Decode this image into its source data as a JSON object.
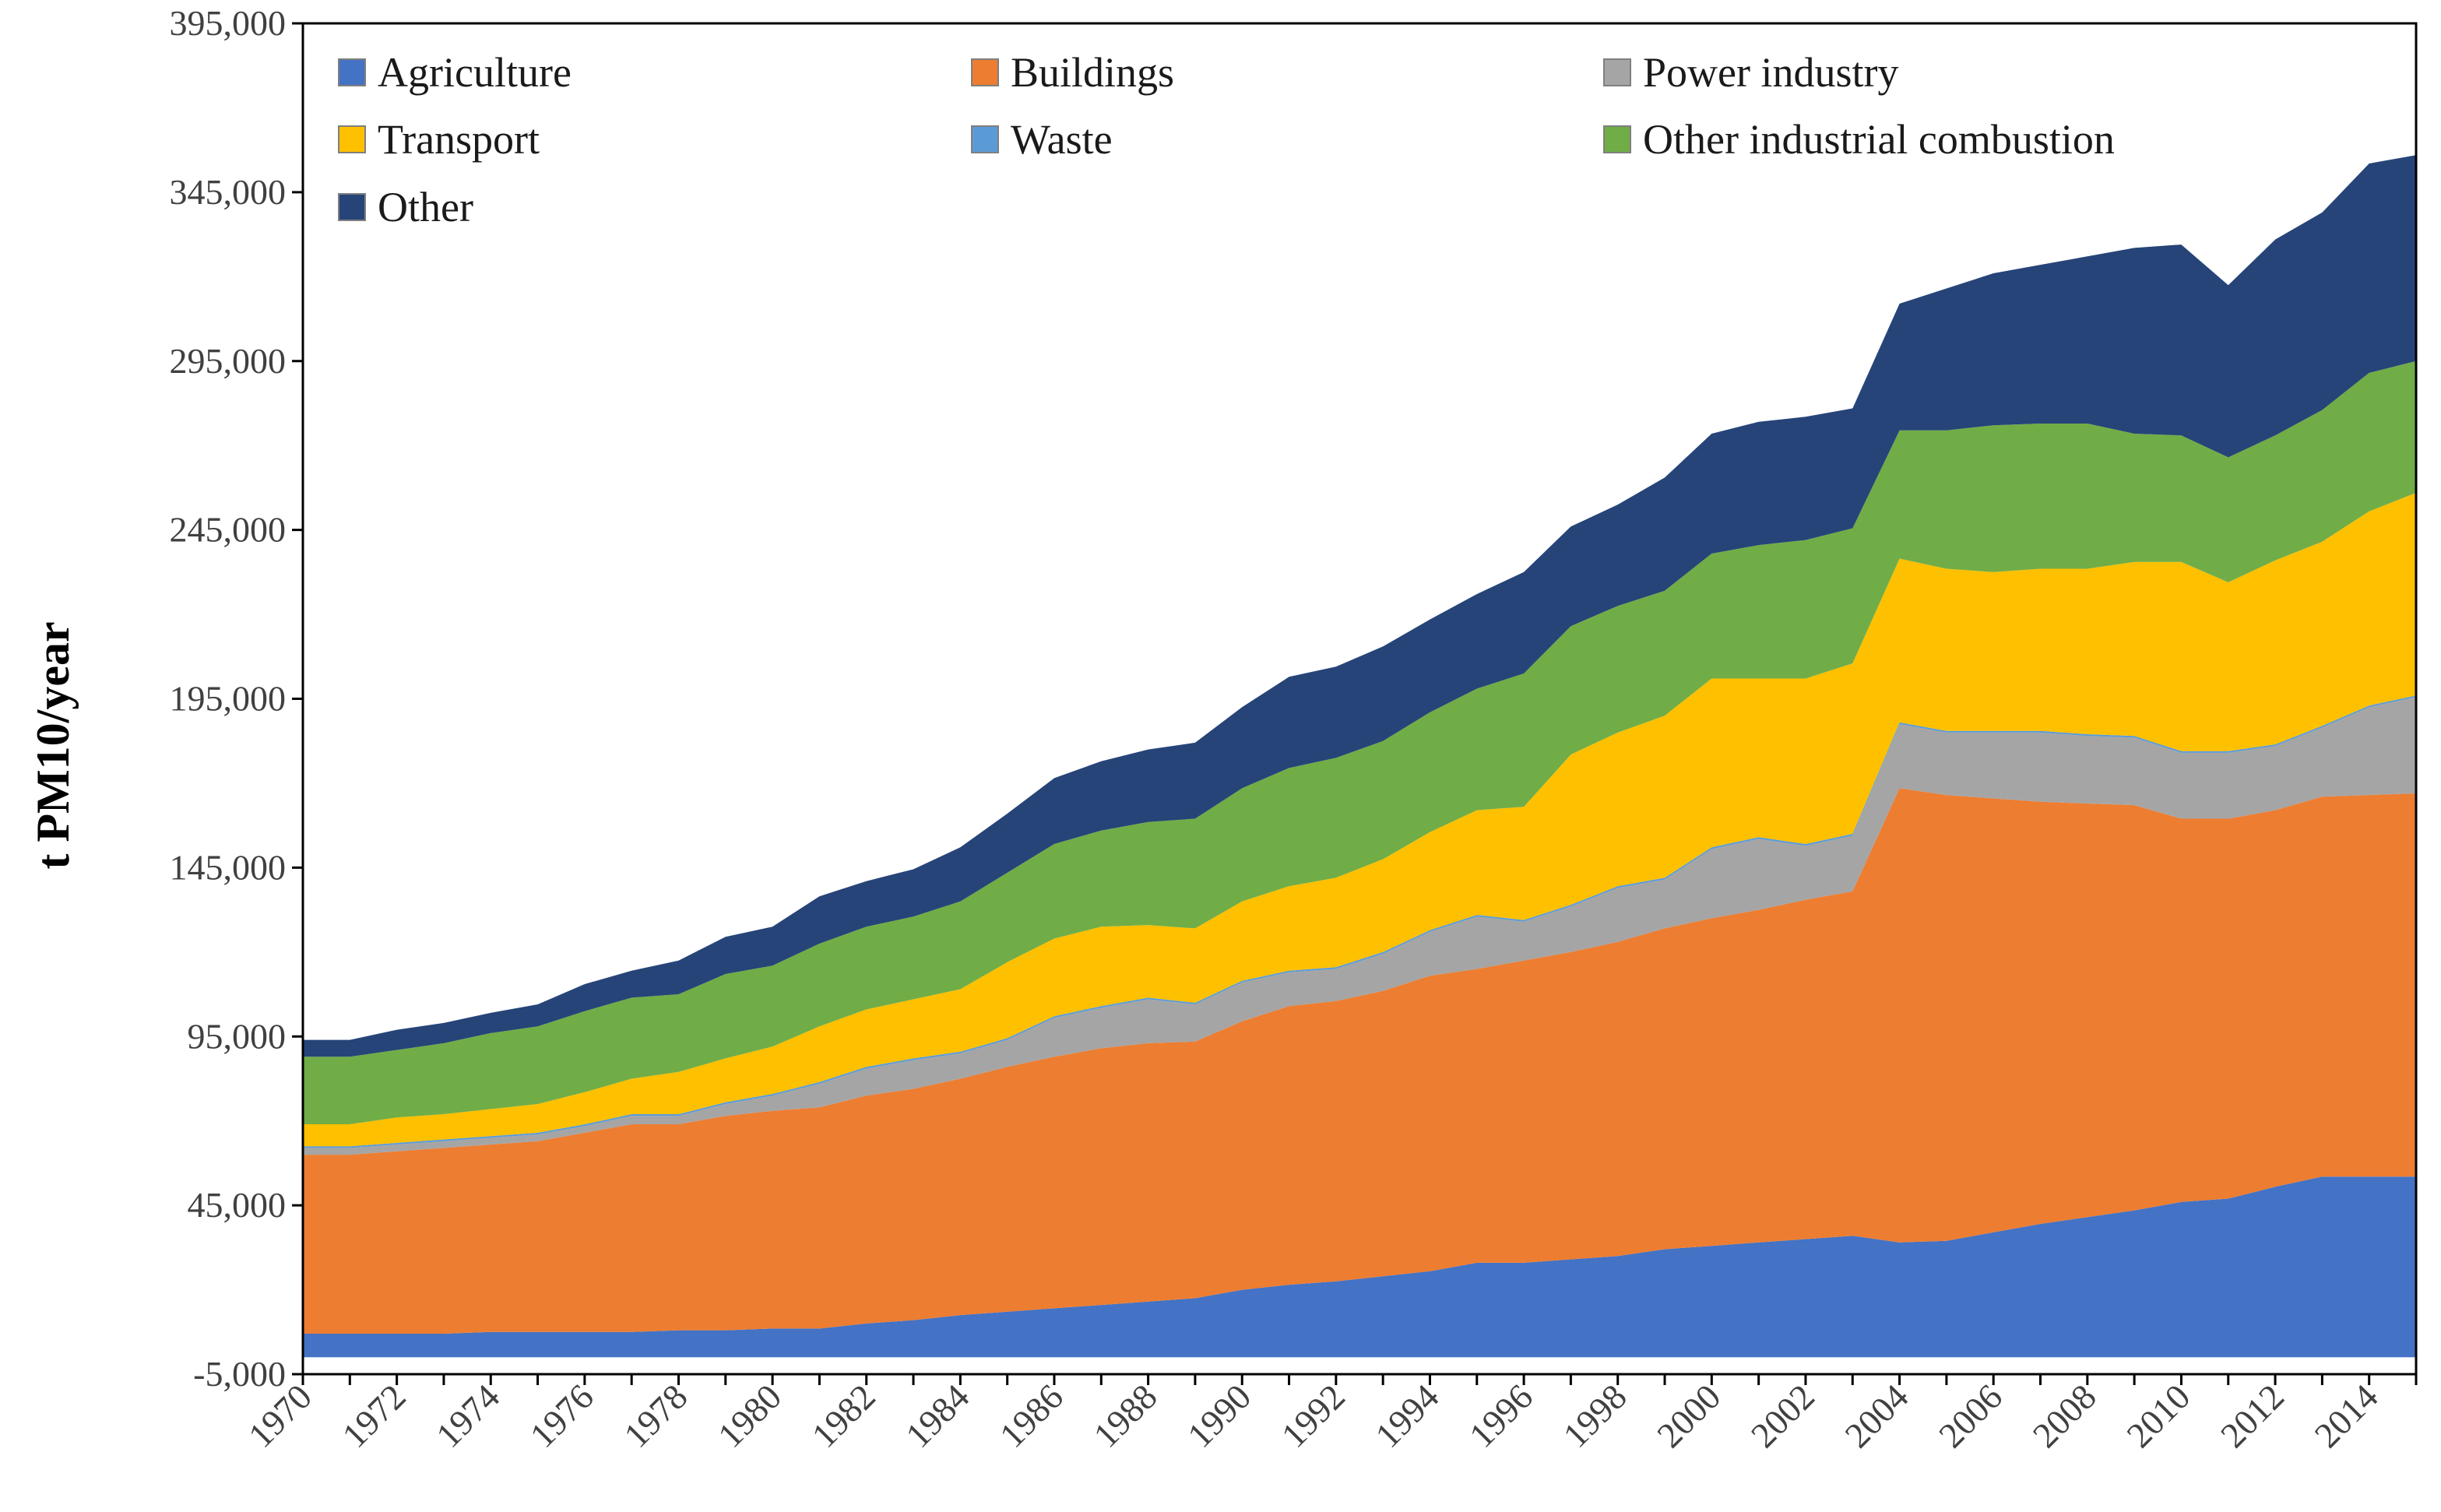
{
  "chart_data": {
    "type": "area",
    "stacked": true,
    "title": "",
    "xlabel": "",
    "ylabel": "t PM10/year",
    "ylim": [
      -5000,
      395000
    ],
    "yticks": [
      -5000,
      45000,
      95000,
      145000,
      195000,
      245000,
      295000,
      345000,
      395000
    ],
    "ytick_labels": [
      "-5,000",
      "45,000",
      "95,000",
      "145,000",
      "195,000",
      "245,000",
      "295,000",
      "345,000",
      "395,000"
    ],
    "xtick_labels": [
      "1970",
      "1972",
      "1974",
      "1976",
      "1978",
      "1980",
      "1982",
      "1984",
      "1986",
      "1988",
      "1990",
      "1992",
      "1994",
      "1996",
      "1998",
      "2000",
      "2002",
      "2004",
      "2006",
      "2008",
      "2010",
      "2012",
      "2014"
    ],
    "x": [
      1970,
      1971,
      1972,
      1973,
      1974,
      1975,
      1976,
      1977,
      1978,
      1979,
      1980,
      1981,
      1982,
      1983,
      1984,
      1985,
      1986,
      1987,
      1988,
      1989,
      1990,
      1991,
      1992,
      1993,
      1994,
      1995,
      1996,
      1997,
      1998,
      1999,
      2000,
      2001,
      2002,
      2003,
      2004,
      2005,
      2006,
      2007,
      2008,
      2009,
      2010,
      2011,
      2012,
      2013,
      2014,
      2015
    ],
    "legend_position": "top",
    "grid": false,
    "series": [
      {
        "name": "Agriculture",
        "color": "#4472C4",
        "values": [
          7000,
          7000,
          7000,
          7000,
          7500,
          7500,
          7500,
          7500,
          8000,
          8000,
          8500,
          8500,
          10000,
          11000,
          12500,
          13500,
          14500,
          15500,
          16500,
          17500,
          20000,
          21500,
          22500,
          24000,
          25500,
          28000,
          28000,
          29000,
          30000,
          32000,
          33000,
          34000,
          35000,
          36000,
          34000,
          34500,
          37000,
          39500,
          41500,
          43500,
          46000,
          47000,
          50500,
          53500,
          53500,
          53500
        ]
      },
      {
        "name": "Buildings",
        "color": "#ED7D31",
        "values": [
          53000,
          53000,
          54000,
          55000,
          55500,
          56500,
          59000,
          61500,
          61000,
          63500,
          64500,
          65500,
          67500,
          68500,
          70000,
          72500,
          74500,
          76000,
          76500,
          76000,
          79500,
          82500,
          83000,
          84500,
          87500,
          87000,
          89500,
          91000,
          93000,
          95000,
          97000,
          98500,
          100500,
          102000,
          134500,
          132000,
          128500,
          125000,
          122500,
          120000,
          113500,
          112500,
          111500,
          112500,
          113000,
          113500
        ]
      },
      {
        "name": "Power industry",
        "color": "#A5A5A5",
        "values": [
          2000,
          2000,
          2000,
          2000,
          2000,
          2000,
          2000,
          2500,
          2500,
          3500,
          4500,
          7000,
          8000,
          8500,
          7500,
          8000,
          11500,
          12000,
          13000,
          11000,
          11500,
          10000,
          9500,
          11000,
          13000,
          15500,
          11500,
          13500,
          16000,
          14500,
          20500,
          21000,
          16000,
          16500,
          19000,
          18500,
          19500,
          20500,
          20000,
          20000,
          19500,
          19500,
          19000,
          20500,
          26000,
          28500
        ]
      },
      {
        "name": "Waste",
        "color": "#5B9BD5",
        "values": [
          500,
          500,
          500,
          500,
          500,
          500,
          500,
          500,
          500,
          500,
          500,
          500,
          500,
          500,
          500,
          500,
          500,
          500,
          500,
          500,
          500,
          500,
          500,
          500,
          500,
          500,
          500,
          500,
          500,
          500,
          500,
          500,
          500,
          500,
          500,
          500,
          500,
          500,
          500,
          500,
          500,
          500,
          500,
          500,
          500,
          500
        ]
      },
      {
        "name": "Transport",
        "color": "#FFC000",
        "values": [
          6500,
          6500,
          7500,
          7500,
          8000,
          8500,
          9500,
          10500,
          12500,
          13000,
          14000,
          16500,
          17000,
          17500,
          18500,
          22500,
          23000,
          23500,
          21500,
          22000,
          23500,
          25000,
          26500,
          27500,
          29000,
          31000,
          33500,
          44500,
          45500,
          48000,
          50000,
          47000,
          49000,
          50500,
          48500,
          48000,
          47000,
          48000,
          49000,
          51500,
          56000,
          50000,
          54500,
          54500,
          57500,
          60000
        ]
      },
      {
        "name": "Other industrial combustion",
        "color": "#70AD47",
        "values": [
          20000,
          20000,
          20000,
          21000,
          22500,
          23000,
          24000,
          24000,
          23000,
          25000,
          24000,
          24500,
          24500,
          24500,
          26000,
          26500,
          28000,
          28500,
          30500,
          32500,
          33500,
          35000,
          35500,
          35000,
          35500,
          36000,
          39500,
          38000,
          37500,
          37000,
          37000,
          39500,
          41000,
          40000,
          38000,
          41000,
          43500,
          43000,
          43000,
          38000,
          37500,
          37000,
          37000,
          39000,
          41000,
          39000
        ]
      },
      {
        "name": "Other",
        "color": "#264478",
        "values": [
          5000,
          5000,
          6000,
          6000,
          6000,
          6500,
          8000,
          8000,
          10000,
          11000,
          11500,
          14000,
          13500,
          14000,
          16000,
          17500,
          19500,
          20500,
          21500,
          22500,
          24000,
          27000,
          27000,
          28000,
          27500,
          28000,
          30000,
          29500,
          30000,
          33500,
          35500,
          36500,
          36500,
          35500,
          37500,
          42000,
          45000,
          47000,
          49500,
          55000,
          56500,
          51000,
          58000,
          58500,
          62000,
          61000
        ]
      }
    ],
    "legend_order": [
      "Agriculture",
      "Buildings",
      "Power industry",
      "Transport",
      "Waste",
      "Other industrial combustion",
      "Other"
    ]
  }
}
